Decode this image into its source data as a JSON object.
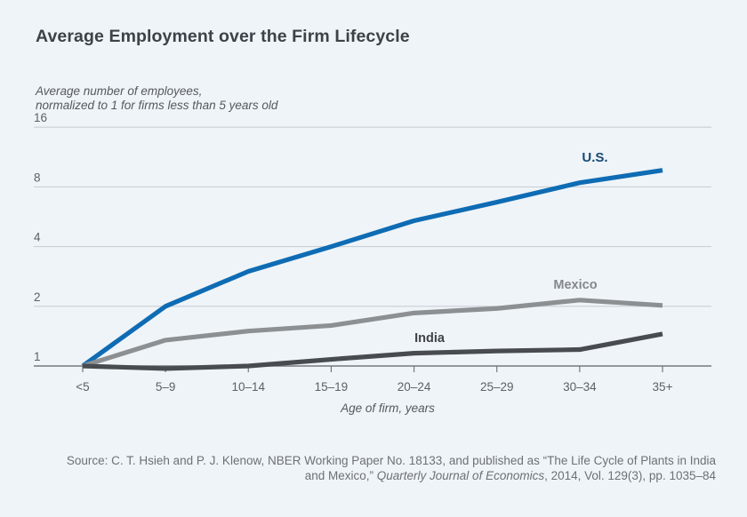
{
  "page": {
    "background": "#eff4f8"
  },
  "chart_data": {
    "type": "line",
    "title": "Average Employment over the Firm Lifecycle",
    "subtitle_lines": [
      "Average number of employees,",
      "normalized to 1 for firms less than 5 years old"
    ],
    "xlabel": "Age of firm, years",
    "ylabel": "",
    "categories": [
      "<5",
      "5–9",
      "10–14",
      "15–19",
      "20–24",
      "25–29",
      "30–34",
      "35+"
    ],
    "y_scale": "log2",
    "y_ticks": [
      16,
      8,
      4,
      2,
      1
    ],
    "ylim": [
      1,
      16
    ],
    "grid": "horizontal",
    "legend_position": "inline-labels",
    "series": [
      {
        "name": "U.S.",
        "color": "#0e6cb4",
        "label_color": "#174a74",
        "values": [
          1.0,
          2.0,
          3.0,
          4.0,
          5.4,
          6.7,
          8.4,
          9.7
        ]
      },
      {
        "name": "Mexico",
        "color": "#8c9093",
        "label_color": "#84888c",
        "values": [
          1.0,
          1.35,
          1.5,
          1.6,
          1.85,
          1.95,
          2.15,
          2.02
        ]
      },
      {
        "name": "India",
        "color": "#484c50",
        "label_color": "#3f4347",
        "values": [
          1.0,
          0.97,
          1.0,
          1.08,
          1.16,
          1.19,
          1.21,
          1.45
        ]
      }
    ],
    "axis_colors": {
      "gridline": "#c9d0d6",
      "baseline": "#75797e",
      "tick": "#75797e",
      "tick_label": "#5d6166"
    }
  },
  "source": {
    "line1": "Source: C. T. Hsieh and P. J. Klenow, NBER Working Paper No. 18133, and published as “The Life Cycle of Plants in India",
    "line2_prefix": "and Mexico,” ",
    "line2_italic": "Quarterly Journal of Economics",
    "line2_suffix": ", 2014, Vol. 129(3), pp. 1035–84"
  }
}
